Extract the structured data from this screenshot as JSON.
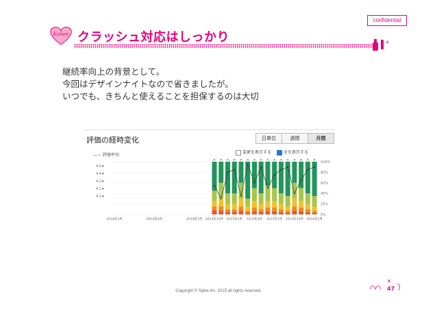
{
  "badge": {
    "confidential": "confidential"
  },
  "header": {
    "title": "クラッシュ対応はしっかり",
    "heart_logo_text": "Kanon"
  },
  "body": {
    "lines": [
      "継続率向上の背景として。",
      "今回はデザインナイトなので省きましたが。",
      "いつでも、きちんと使えることを担保するのは大切"
    ]
  },
  "chart_panel": {
    "title": "評価の経時変化",
    "tabs": [
      {
        "label": "日単位",
        "active": false
      },
      {
        "label": "週間",
        "active": false
      },
      {
        "label": "月間",
        "active": true
      }
    ],
    "legend_label": "—— 評価平均",
    "checkboxes": [
      {
        "label": "変更を表示する",
        "checked": false
      },
      {
        "label": "全を表示する",
        "checked": true
      }
    ],
    "colors": {
      "green": "#21955a",
      "lime": "#a7c64a",
      "yellow": "#f3c12a",
      "orange": "#f08a1c",
      "red": "#dc5a3a"
    }
  },
  "chart_data": {
    "type": "bar",
    "stacked": true,
    "categories": [
      "2014年1月",
      "",
      "",
      "",
      "",
      "",
      "2014年4月",
      "",
      "",
      "",
      "",
      "",
      "2014年7月",
      "",
      "",
      "2014年10月",
      "",
      "",
      "2015年1月",
      "",
      "",
      "2015年4月",
      "",
      "",
      "2015年7月",
      "",
      "",
      "2015年10月",
      "",
      "",
      "2016年1月"
    ],
    "x_tick_labels": [
      "2014年1月",
      "2014年4月",
      "2014年7月",
      "2014年10月",
      "2015年1月",
      "2015年4月",
      "2015年7月",
      "2015年10月",
      "2016年1月"
    ],
    "left_axis_ticks": [
      "4.5★",
      "4.4★",
      "4.2★",
      "4.1★",
      "4.1★"
    ],
    "right_axis_ticks": [
      "100%",
      "80%",
      "60%",
      "40%",
      "20%",
      "0%"
    ],
    "ylim": [
      0,
      100
    ],
    "series": [
      {
        "values": [
          0,
          0,
          0,
          0,
          0,
          0,
          0,
          0,
          0,
          0,
          0,
          0,
          0,
          0,
          0,
          55,
          40,
          60,
          60,
          40,
          70,
          50,
          60,
          45,
          50,
          60,
          65,
          40,
          50,
          60,
          65
        ]
      },
      {
        "values": [
          0,
          0,
          0,
          0,
          0,
          0,
          0,
          0,
          0,
          0,
          0,
          0,
          0,
          0,
          0,
          20,
          30,
          20,
          20,
          30,
          15,
          25,
          20,
          30,
          25,
          20,
          20,
          30,
          25,
          20,
          20
        ]
      },
      {
        "values": [
          0,
          0,
          0,
          0,
          0,
          0,
          0,
          0,
          0,
          0,
          0,
          0,
          0,
          0,
          0,
          10,
          15,
          10,
          10,
          15,
          8,
          12,
          10,
          12,
          12,
          10,
          8,
          15,
          12,
          10,
          8
        ]
      },
      {
        "values": [
          0,
          0,
          0,
          0,
          0,
          0,
          0,
          0,
          0,
          0,
          0,
          0,
          0,
          0,
          0,
          7,
          8,
          5,
          5,
          8,
          4,
          7,
          5,
          7,
          7,
          6,
          4,
          8,
          7,
          6,
          4
        ]
      },
      {
        "values": [
          0,
          0,
          0,
          0,
          0,
          0,
          0,
          0,
          0,
          0,
          0,
          0,
          0,
          0,
          0,
          8,
          7,
          5,
          5,
          7,
          3,
          6,
          5,
          6,
          6,
          4,
          3,
          7,
          6,
          4,
          3
        ]
      }
    ],
    "average_line": [
      null,
      null,
      null,
      null,
      null,
      null,
      null,
      null,
      null,
      null,
      null,
      null,
      null,
      null,
      null,
      0.55,
      0.3,
      0.8,
      0.85,
      0.35,
      0.95,
      0.6,
      0.9,
      0.5,
      0.75,
      0.85,
      0.9,
      0.4,
      0.65,
      0.85,
      0.9
    ]
  },
  "footer": {
    "copyright": "Copyright © Spika Inc. 2015 all rights reserved.",
    "page_number": "47"
  }
}
